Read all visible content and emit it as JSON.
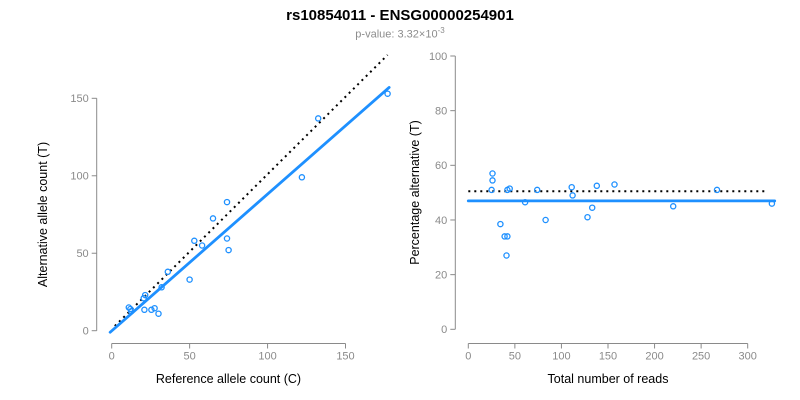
{
  "title": "rs10854011 - ENSG00000254901",
  "subtitle": {
    "text": "p-value: 3.32×10",
    "exponent": "-3"
  },
  "colors": {
    "accent": "#1E90FF",
    "identity_line": "#000000",
    "axis": "#8a8a8a",
    "tick_label": "#8a8a8a",
    "title": "#000000",
    "subtitle": "#8c8c8c"
  },
  "chart_data": [
    {
      "type": "scatter",
      "name": "allele-counts",
      "xlabel": "Reference allele count (C)",
      "ylabel": "Alternative allele count (T)",
      "xticks": [
        0,
        50,
        100,
        150
      ],
      "yticks": [
        0,
        50,
        100,
        150
      ],
      "xlim": [
        0,
        180
      ],
      "ylim": [
        0,
        178
      ],
      "grid": false,
      "legend": "none",
      "points": [
        [
          11,
          15
        ],
        [
          12,
          14
        ],
        [
          12.5,
          12.5
        ],
        [
          21,
          13.5
        ],
        [
          25.5,
          13.5
        ],
        [
          27.5,
          14.5
        ],
        [
          30,
          11
        ],
        [
          20.5,
          21
        ],
        [
          21.5,
          23
        ],
        [
          32,
          28
        ],
        [
          36,
          38
        ],
        [
          50,
          33
        ],
        [
          53,
          58
        ],
        [
          58,
          55
        ],
        [
          65,
          72.5
        ],
        [
          74,
          83
        ],
        [
          74,
          59.5
        ],
        [
          75,
          52
        ],
        [
          122,
          99
        ],
        [
          132.5,
          137
        ],
        [
          177,
          153
        ]
      ],
      "fit_line": {
        "x1": -1,
        "y1": -1,
        "x2": 178,
        "y2": 157
      },
      "identity_line": {
        "x1": 2,
        "y1": 3,
        "x2": 177,
        "y2": 178
      }
    },
    {
      "type": "scatter",
      "name": "percentage-vs-coverage",
      "xlabel": "Total number of reads",
      "ylabel": "Percentage alternative (T)",
      "xticks": [
        0,
        50,
        100,
        150,
        200,
        250,
        300
      ],
      "yticks": [
        0,
        20,
        40,
        60,
        80,
        100
      ],
      "xlim": [
        0,
        330
      ],
      "ylim": [
        0,
        100
      ],
      "grid": false,
      "legend": "none",
      "points": [
        [
          26,
          57
        ],
        [
          26,
          54.5
        ],
        [
          25,
          51
        ],
        [
          42,
          51
        ],
        [
          44.5,
          51.5
        ],
        [
          34.5,
          38.5
        ],
        [
          39,
          34
        ],
        [
          42,
          34
        ],
        [
          41,
          27
        ],
        [
          61,
          46.5
        ],
        [
          74,
          51
        ],
        [
          83,
          40
        ],
        [
          111,
          52
        ],
        [
          112,
          49
        ],
        [
          128,
          41
        ],
        [
          133,
          44.5
        ],
        [
          138,
          52.5
        ],
        [
          157,
          53
        ],
        [
          220,
          45
        ],
        [
          267,
          51
        ],
        [
          326,
          46
        ]
      ],
      "fit_line": {
        "x1": 0,
        "y1": 47,
        "x2": 329,
        "y2": 47
      },
      "identity_line": {
        "x1": 0,
        "y1": 50.5,
        "x2": 322,
        "y2": 50.5
      }
    }
  ]
}
